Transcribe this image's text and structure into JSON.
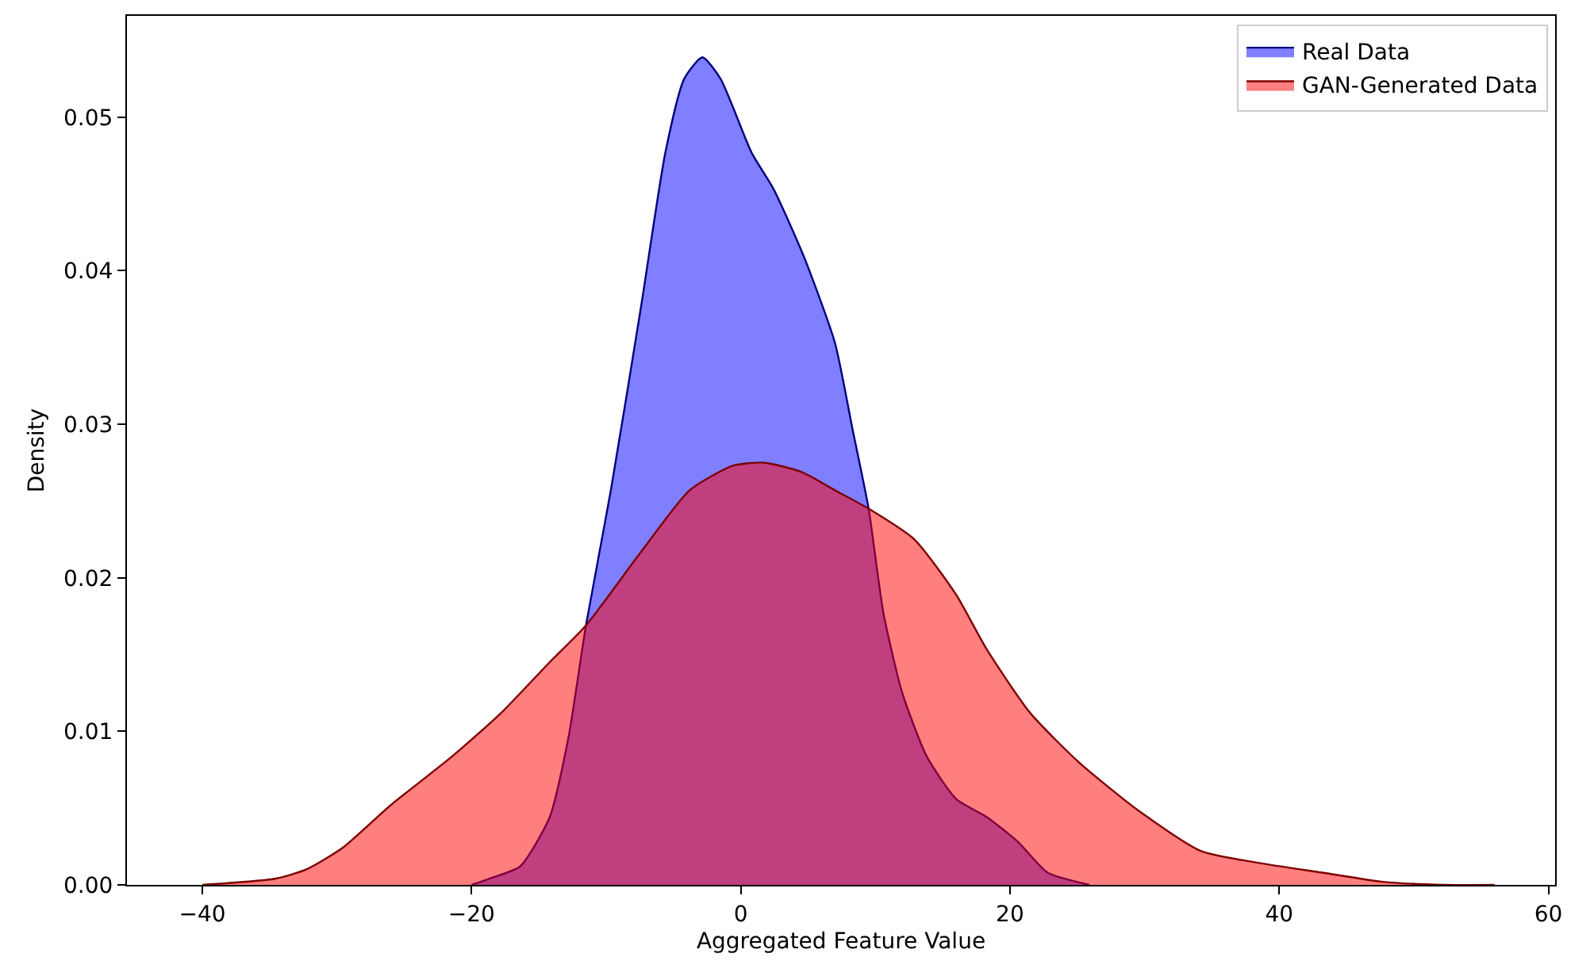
{
  "chart_data": {
    "type": "area",
    "xlabel": "Aggregated Feature Value",
    "ylabel": "Density",
    "xlim": [
      -45.6,
      60.5
    ],
    "xticks": [
      -40,
      -20,
      0,
      20,
      40,
      60
    ],
    "ylim": [
      0,
      0.0566
    ],
    "yticks": [
      {
        "value": 0,
        "label": "0.00"
      },
      {
        "value": 0.01,
        "label": "0.01"
      },
      {
        "value": 0.02,
        "label": "0.02"
      },
      {
        "value": 0.03,
        "label": "0.03"
      },
      {
        "value": 0.04,
        "label": "0.04"
      },
      {
        "value": 0.05,
        "label": "0.05"
      }
    ],
    "legend": "top right",
    "series": [
      {
        "name": "Real Data",
        "color": "#0000ff",
        "x": [
          -20,
          -18.7,
          -16.4,
          -14.2,
          -12.8,
          -11.5,
          -9.65,
          -7.4,
          -5.6,
          -4.2,
          -2.85,
          -1.5,
          0.8,
          2.45,
          4.7,
          7.0,
          8.3,
          9.5,
          10.6,
          12.0,
          13.8,
          16.0,
          18.3,
          20.6,
          22.8,
          25.9
        ],
        "values": [
          0,
          0.0004,
          0.0012,
          0.0044,
          0.0096,
          0.0169,
          0.0257,
          0.0377,
          0.0477,
          0.0525,
          0.0539,
          0.0525,
          0.0477,
          0.0453,
          0.0409,
          0.0353,
          0.0297,
          0.0245,
          0.0177,
          0.0125,
          0.0084,
          0.0056,
          0.0044,
          0.0028,
          0.0008,
          0
        ]
      },
      {
        "name": "GAN-Generated Data",
        "color": "#ff0000",
        "x": [
          -40,
          -34.6,
          -32.3,
          -29.6,
          -26,
          -21.4,
          -17.8,
          -14.2,
          -11.5,
          -7.4,
          -3.8,
          -0.6,
          1.7,
          4.5,
          7.0,
          9.5,
          12.9,
          16.0,
          18.3,
          21.5,
          25.1,
          29.6,
          34.2,
          38.7,
          43.2,
          47.7,
          52.3,
          56
        ],
        "values": [
          0,
          0.0004,
          0.001,
          0.0024,
          0.0052,
          0.0084,
          0.0112,
          0.0145,
          0.0169,
          0.0217,
          0.0257,
          0.0273,
          0.0275,
          0.0269,
          0.0257,
          0.0245,
          0.0225,
          0.0189,
          0.0153,
          0.0112,
          0.008,
          0.0048,
          0.0022,
          0.0014,
          0.0008,
          0.0002,
          0,
          0
        ]
      }
    ]
  }
}
